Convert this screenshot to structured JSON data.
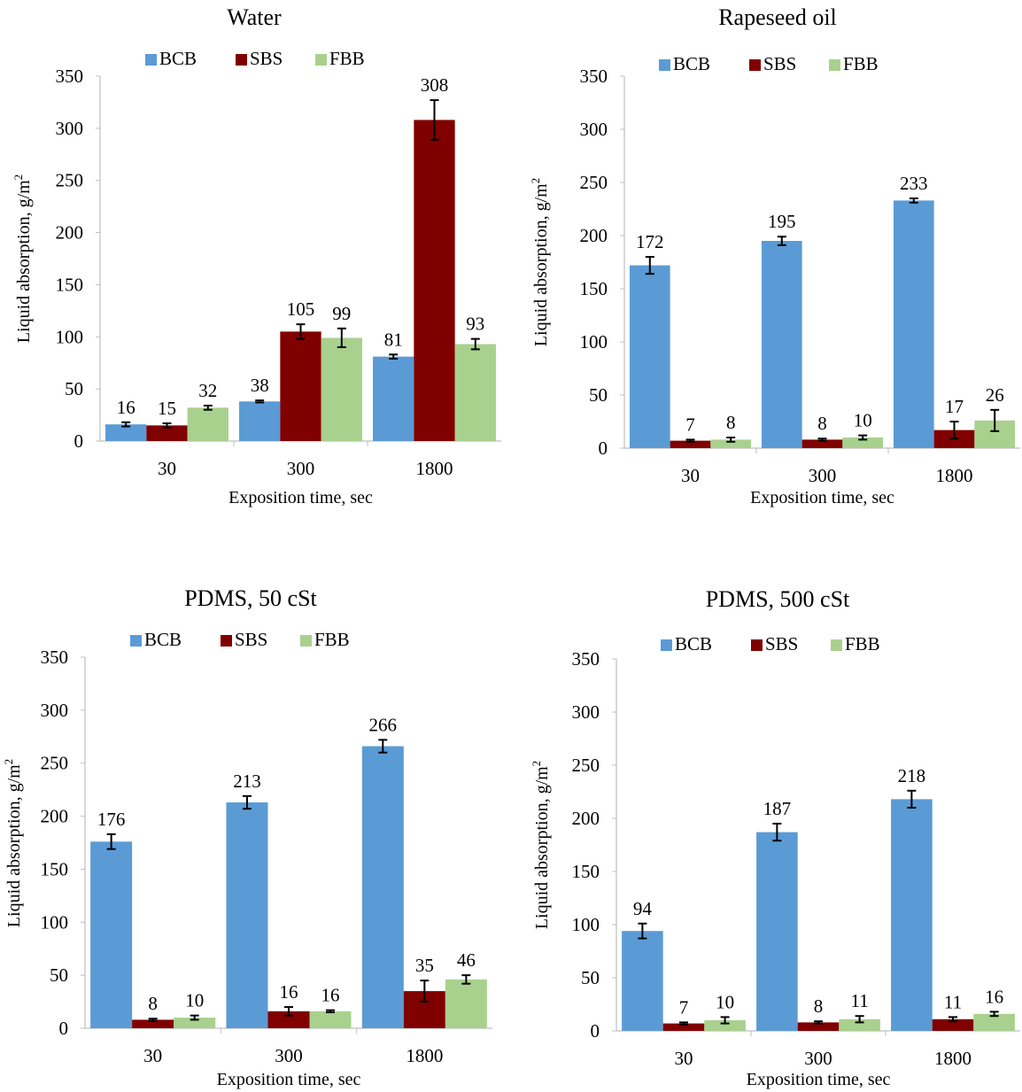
{
  "colors": {
    "BCB": "#5B9BD5",
    "SBS": "#800000",
    "FBB": "#A9D18E",
    "axis": "#BFBFBF",
    "errorbar": "#000000"
  },
  "chart_data": [
    {
      "type": "bar",
      "title": "Water",
      "categories": [
        "30",
        "300",
        "1800"
      ],
      "xlabel": "Exposition  time, sec",
      "ylabel_main": "Liquid  absorption, g/m",
      "ylabel_sup": "2",
      "ylim": [
        0,
        350
      ],
      "yticks": [
        "0",
        "50",
        "100",
        "150",
        "200",
        "250",
        "300",
        "350"
      ],
      "legend_position": "top",
      "grid": false,
      "series": [
        {
          "name": "BCB",
          "values": [
            16,
            38,
            81
          ],
          "errors": [
            2,
            1,
            2
          ]
        },
        {
          "name": "SBS",
          "values": [
            15,
            105,
            308
          ],
          "errors": [
            2,
            7,
            19
          ]
        },
        {
          "name": "FBB",
          "values": [
            32,
            99,
            93
          ],
          "errors": [
            2,
            9,
            5
          ]
        }
      ]
    },
    {
      "type": "bar",
      "title": "Rapeseed oil",
      "categories": [
        "30",
        "300",
        "1800"
      ],
      "xlabel": "Exposition  time, sec",
      "ylabel_main": "Liquid  absorption, g/m",
      "ylabel_sup": "2",
      "ylim": [
        0,
        350
      ],
      "yticks": [
        "0",
        "50",
        "100",
        "150",
        "200",
        "250",
        "300",
        "350"
      ],
      "legend_position": "top",
      "grid": false,
      "series": [
        {
          "name": "BCB",
          "values": [
            172,
            195,
            233
          ],
          "errors": [
            8,
            4,
            2
          ]
        },
        {
          "name": "SBS",
          "values": [
            7,
            8,
            17
          ],
          "errors": [
            1,
            1,
            8
          ]
        },
        {
          "name": "FBB",
          "values": [
            8,
            10,
            26
          ],
          "errors": [
            2,
            2,
            10
          ]
        }
      ]
    },
    {
      "type": "bar",
      "title": "PDMS, 50 cSt",
      "categories": [
        "30",
        "300",
        "1800"
      ],
      "xlabel": "Exposition  time, sec",
      "ylabel_main": "Liquid  absorption, g/m",
      "ylabel_sup": "2",
      "ylim": [
        0,
        350
      ],
      "yticks": [
        "0",
        "50",
        "100",
        "150",
        "200",
        "250",
        "300",
        "350"
      ],
      "legend_position": "top",
      "grid": false,
      "series": [
        {
          "name": "BCB",
          "values": [
            176,
            213,
            266
          ],
          "errors": [
            7,
            6,
            6
          ]
        },
        {
          "name": "SBS",
          "values": [
            8,
            16,
            35
          ],
          "errors": [
            1,
            4,
            10
          ]
        },
        {
          "name": "FBB",
          "values": [
            10,
            16,
            46
          ],
          "errors": [
            2,
            1,
            4
          ]
        }
      ]
    },
    {
      "type": "bar",
      "title": "PDMS, 500 cSt",
      "categories": [
        "30",
        "300",
        "1800"
      ],
      "xlabel": "Exposition  time, sec",
      "ylabel_main": "Liquid  absorption, g/m",
      "ylabel_sup": "2",
      "ylim": [
        0,
        350
      ],
      "yticks": [
        "0",
        "50",
        "100",
        "150",
        "200",
        "250",
        "300",
        "350"
      ],
      "legend_position": "top",
      "grid": false,
      "series": [
        {
          "name": "BCB",
          "values": [
            94,
            187,
            218
          ],
          "errors": [
            7,
            8,
            8
          ]
        },
        {
          "name": "SBS",
          "values": [
            7,
            8,
            11
          ],
          "errors": [
            1,
            1,
            2
          ]
        },
        {
          "name": "FBB",
          "values": [
            10,
            11,
            16
          ],
          "errors": [
            3,
            3,
            2
          ]
        }
      ]
    }
  ]
}
